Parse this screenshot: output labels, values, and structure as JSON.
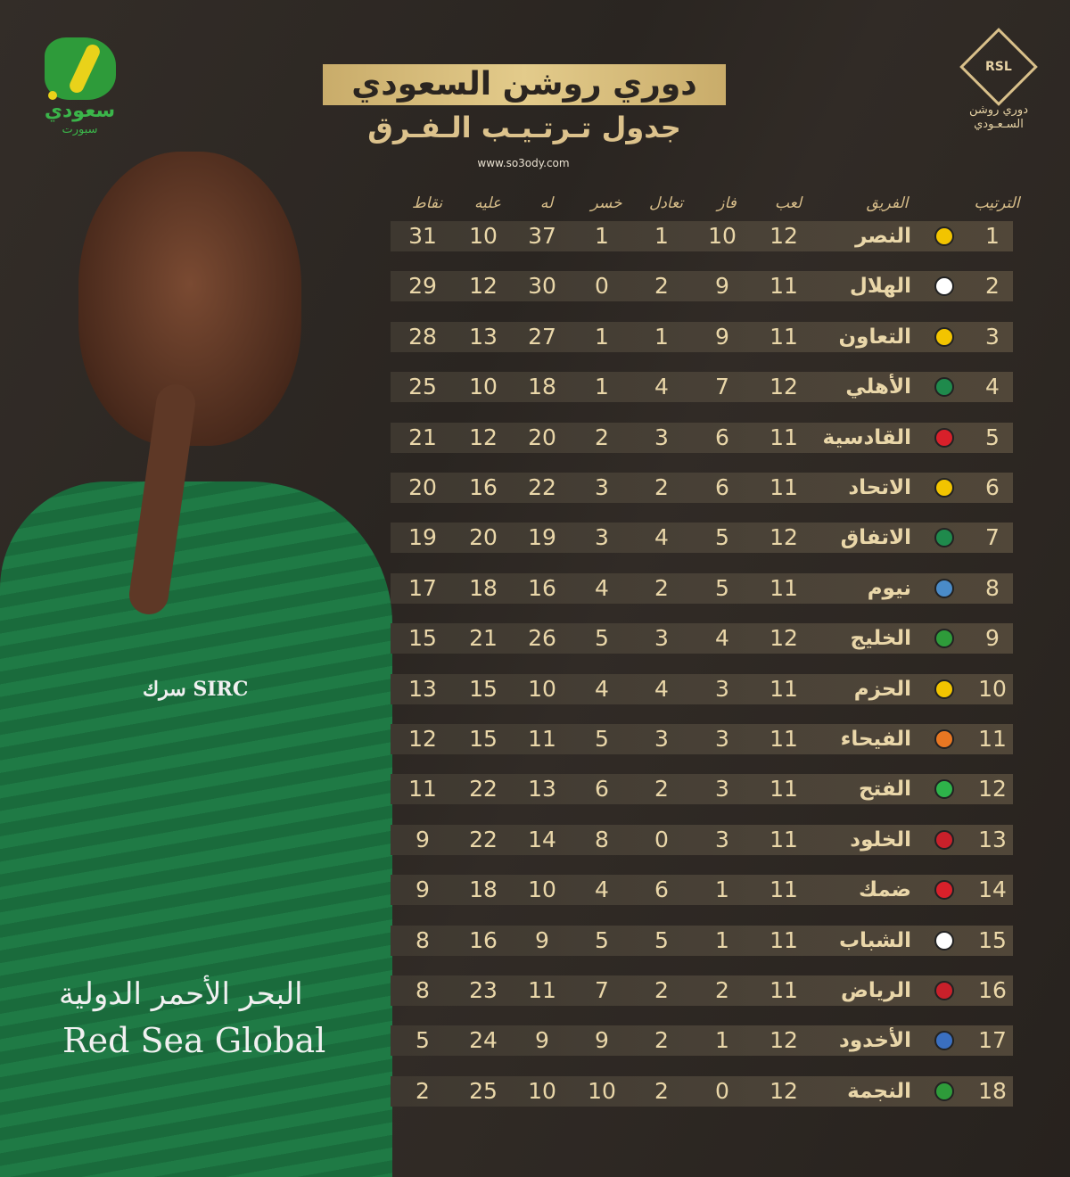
{
  "header": {
    "title": "دوري روشن السعودي",
    "subtitle": "جدول تـرتـيـب الـفـرق",
    "website": "www.so3ody.com"
  },
  "brand_logo": {
    "line1": "سعودي",
    "line2": "سبورت",
    "colors": {
      "green": "#2e9b3a",
      "yellow": "#e9d21a"
    }
  },
  "league_logo": {
    "abbr": "RSL",
    "name_line1": "دوري روشن",
    "name_line2": "السـعـودي"
  },
  "photo": {
    "sponsor1": "سرك SIRC",
    "sponsor2": "البحر الأحمر الدولية",
    "sponsor3": "Red Sea Global"
  },
  "table": {
    "columns": {
      "rank": "الترتيب",
      "team": "الفريق",
      "played": "لعب",
      "won": "فاز",
      "drawn": "تعادل",
      "lost": "خسر",
      "gf": "له",
      "ga": "عليه",
      "points": "نقاط"
    },
    "rows": [
      {
        "rank": "1",
        "team": "النصر",
        "played": "12",
        "won": "10",
        "drawn": "1",
        "lost": "1",
        "gf": "37",
        "ga": "10",
        "points": "31",
        "crest": "#f2c400"
      },
      {
        "rank": "2",
        "team": "الهلال",
        "played": "11",
        "won": "9",
        "drawn": "2",
        "lost": "0",
        "gf": "30",
        "ga": "12",
        "points": "29",
        "crest": "#ffffff"
      },
      {
        "rank": "3",
        "team": "التعاون",
        "played": "11",
        "won": "9",
        "drawn": "1",
        "lost": "1",
        "gf": "27",
        "ga": "13",
        "points": "28",
        "crest": "#f2c400"
      },
      {
        "rank": "4",
        "team": "الأهلي",
        "played": "12",
        "won": "7",
        "drawn": "4",
        "lost": "1",
        "gf": "18",
        "ga": "10",
        "points": "25",
        "crest": "#1f8a4c"
      },
      {
        "rank": "5",
        "team": "القادسية",
        "played": "11",
        "won": "6",
        "drawn": "3",
        "lost": "2",
        "gf": "20",
        "ga": "12",
        "points": "21",
        "crest": "#d8202a"
      },
      {
        "rank": "6",
        "team": "الاتحاد",
        "played": "11",
        "won": "6",
        "drawn": "2",
        "lost": "3",
        "gf": "22",
        "ga": "16",
        "points": "20",
        "crest": "#f2c400"
      },
      {
        "rank": "7",
        "team": "الاتفاق",
        "played": "12",
        "won": "5",
        "drawn": "4",
        "lost": "3",
        "gf": "19",
        "ga": "20",
        "points": "19",
        "crest": "#1f8a4c"
      },
      {
        "rank": "8",
        "team": "نيوم",
        "played": "11",
        "won": "5",
        "drawn": "2",
        "lost": "4",
        "gf": "16",
        "ga": "18",
        "points": "17",
        "crest": "#4a8bc8"
      },
      {
        "rank": "9",
        "team": "الخليج",
        "played": "12",
        "won": "4",
        "drawn": "3",
        "lost": "5",
        "gf": "26",
        "ga": "21",
        "points": "15",
        "crest": "#2e9b3a"
      },
      {
        "rank": "10",
        "team": "الحزم",
        "played": "11",
        "won": "3",
        "drawn": "4",
        "lost": "4",
        "gf": "10",
        "ga": "15",
        "points": "13",
        "crest": "#f2c400"
      },
      {
        "rank": "11",
        "team": "الفيحاء",
        "played": "11",
        "won": "3",
        "drawn": "3",
        "lost": "5",
        "gf": "11",
        "ga": "15",
        "points": "12",
        "crest": "#e87722"
      },
      {
        "rank": "12",
        "team": "الفتح",
        "played": "11",
        "won": "3",
        "drawn": "2",
        "lost": "6",
        "gf": "13",
        "ga": "22",
        "points": "11",
        "crest": "#2eb34a"
      },
      {
        "rank": "13",
        "team": "الخلود",
        "played": "11",
        "won": "3",
        "drawn": "0",
        "lost": "8",
        "gf": "14",
        "ga": "22",
        "points": "9",
        "crest": "#c8202a"
      },
      {
        "rank": "14",
        "team": "ضمك",
        "played": "11",
        "won": "1",
        "drawn": "6",
        "lost": "4",
        "gf": "10",
        "ga": "18",
        "points": "9",
        "crest": "#d8202a"
      },
      {
        "rank": "15",
        "team": "الشباب",
        "played": "11",
        "won": "1",
        "drawn": "5",
        "lost": "5",
        "gf": "9",
        "ga": "16",
        "points": "8",
        "crest": "#ffffff"
      },
      {
        "rank": "16",
        "team": "الرياض",
        "played": "11",
        "won": "2",
        "drawn": "2",
        "lost": "7",
        "gf": "11",
        "ga": "23",
        "points": "8",
        "crest": "#c8202a"
      },
      {
        "rank": "17",
        "team": "الأخدود",
        "played": "12",
        "won": "1",
        "drawn": "2",
        "lost": "9",
        "gf": "9",
        "ga": "24",
        "points": "5",
        "crest": "#3a6fc0"
      },
      {
        "rank": "18",
        "team": "النجمة",
        "played": "12",
        "won": "0",
        "drawn": "2",
        "lost": "10",
        "gf": "10",
        "ga": "25",
        "points": "2",
        "crest": "#2e9b3a"
      }
    ]
  }
}
